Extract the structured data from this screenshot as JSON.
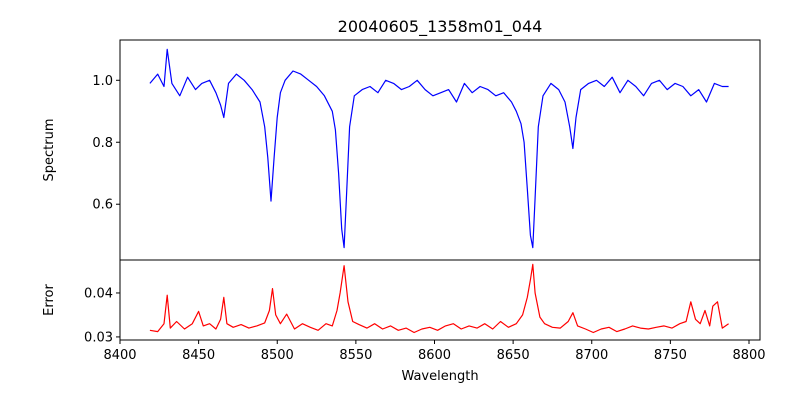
{
  "chart_data": [
    {
      "type": "line",
      "title": "20040605_1358m01_044",
      "xlabel": "",
      "ylabel": "Spectrum",
      "xlim": [
        8400,
        8807
      ],
      "ylim": [
        0.42,
        1.13
      ],
      "yticks": [
        0.6,
        0.8,
        1.0
      ],
      "ytick_labels": [
        "0.6",
        "0.8",
        "1.0"
      ],
      "grid": false,
      "series": [
        {
          "color": "#0000ff",
          "x": [
            8419,
            8424,
            8428,
            8430,
            8433,
            8438,
            8443,
            8448,
            8452,
            8457,
            8461,
            8464,
            8466,
            8469,
            8474,
            8479,
            8484,
            8489,
            8492,
            8494,
            8496,
            8498,
            8500,
            8502,
            8505,
            8510,
            8515,
            8520,
            8525,
            8530,
            8535,
            8537,
            8539,
            8541,
            8542.5,
            8544,
            8546,
            8549,
            8554,
            8559,
            8564,
            8569,
            8574,
            8579,
            8584,
            8589,
            8594,
            8599,
            8604,
            8609,
            8614,
            8619,
            8624,
            8629,
            8634,
            8639,
            8644,
            8649,
            8652,
            8655,
            8657,
            8659,
            8661,
            8662.5,
            8664,
            8666,
            8669,
            8674,
            8679,
            8683,
            8686,
            8688,
            8690,
            8693,
            8698,
            8703,
            8708,
            8713,
            8718,
            8723,
            8728,
            8733,
            8738,
            8743,
            8748,
            8753,
            8758,
            8763,
            8768,
            8773,
            8778,
            8783,
            8787
          ],
          "y": [
            0.99,
            1.02,
            0.98,
            1.1,
            0.99,
            0.95,
            1.01,
            0.97,
            0.99,
            1.0,
            0.96,
            0.92,
            0.88,
            0.99,
            1.02,
            1.0,
            0.97,
            0.93,
            0.85,
            0.75,
            0.61,
            0.75,
            0.88,
            0.96,
            1.0,
            1.03,
            1.02,
            1.0,
            0.98,
            0.95,
            0.9,
            0.84,
            0.7,
            0.52,
            0.46,
            0.62,
            0.85,
            0.95,
            0.97,
            0.98,
            0.96,
            1.0,
            0.99,
            0.97,
            0.98,
            1.0,
            0.97,
            0.95,
            0.96,
            0.97,
            0.93,
            0.99,
            0.96,
            0.98,
            0.97,
            0.95,
            0.96,
            0.93,
            0.9,
            0.86,
            0.8,
            0.65,
            0.5,
            0.46,
            0.62,
            0.85,
            0.95,
            0.99,
            0.97,
            0.93,
            0.85,
            0.78,
            0.88,
            0.97,
            0.99,
            1.0,
            0.98,
            1.01,
            0.96,
            1.0,
            0.98,
            0.95,
            0.99,
            1.0,
            0.97,
            0.99,
            0.98,
            0.95,
            0.97,
            0.93,
            0.99,
            0.98,
            0.98
          ]
        }
      ]
    },
    {
      "type": "line",
      "title": "",
      "xlabel": "Wavelength",
      "ylabel": "Error",
      "xlim": [
        8400,
        8807
      ],
      "ylim": [
        0.0293,
        0.0475
      ],
      "xticks": [
        8400,
        8450,
        8500,
        8550,
        8600,
        8650,
        8700,
        8750,
        8800
      ],
      "xtick_labels": [
        "8400",
        "8450",
        "8500",
        "8550",
        "8600",
        "8650",
        "8700",
        "8750",
        "8800"
      ],
      "yticks": [
        0.03,
        0.04
      ],
      "ytick_labels": [
        "0.03",
        "0.04"
      ],
      "grid": false,
      "series": [
        {
          "color": "#ff0000",
          "x": [
            8419,
            8424,
            8428,
            8430,
            8432,
            8436,
            8441,
            8446,
            8450,
            8453,
            8457,
            8461,
            8464,
            8466,
            8468,
            8472,
            8477,
            8482,
            8487,
            8492,
            8495,
            8497,
            8499,
            8502,
            8506,
            8511,
            8516,
            8521,
            8526,
            8531,
            8535,
            8538,
            8540,
            8542.5,
            8545,
            8548,
            8552,
            8557,
            8562,
            8567,
            8572,
            8577,
            8582,
            8587,
            8592,
            8597,
            8602,
            8607,
            8612,
            8617,
            8622,
            8627,
            8632,
            8637,
            8642,
            8647,
            8652,
            8656,
            8659,
            8661,
            8662.5,
            8664,
            8667,
            8670,
            8675,
            8680,
            8685,
            8688,
            8691,
            8696,
            8701,
            8706,
            8711,
            8716,
            8721,
            8726,
            8731,
            8736,
            8741,
            8746,
            8751,
            8756,
            8760,
            8763,
            8766,
            8769,
            8772,
            8775,
            8777,
            8780,
            8783,
            8787
          ],
          "y": [
            0.0315,
            0.0312,
            0.033,
            0.0395,
            0.032,
            0.0335,
            0.0318,
            0.033,
            0.0358,
            0.0325,
            0.033,
            0.0318,
            0.034,
            0.039,
            0.033,
            0.0322,
            0.0328,
            0.032,
            0.0325,
            0.0332,
            0.036,
            0.041,
            0.035,
            0.033,
            0.0352,
            0.0318,
            0.033,
            0.0322,
            0.0315,
            0.033,
            0.0325,
            0.036,
            0.04,
            0.0462,
            0.038,
            0.0335,
            0.0328,
            0.032,
            0.033,
            0.0318,
            0.0325,
            0.0315,
            0.032,
            0.031,
            0.0318,
            0.0322,
            0.0315,
            0.0325,
            0.033,
            0.0318,
            0.0325,
            0.032,
            0.033,
            0.0318,
            0.0335,
            0.0322,
            0.033,
            0.035,
            0.039,
            0.043,
            0.0465,
            0.04,
            0.0345,
            0.033,
            0.0322,
            0.032,
            0.0335,
            0.0355,
            0.0325,
            0.0318,
            0.031,
            0.0318,
            0.0322,
            0.0312,
            0.0318,
            0.0325,
            0.032,
            0.0318,
            0.0322,
            0.0325,
            0.032,
            0.033,
            0.0335,
            0.038,
            0.034,
            0.033,
            0.036,
            0.0325,
            0.037,
            0.038,
            0.032,
            0.033
          ]
        }
      ]
    }
  ]
}
